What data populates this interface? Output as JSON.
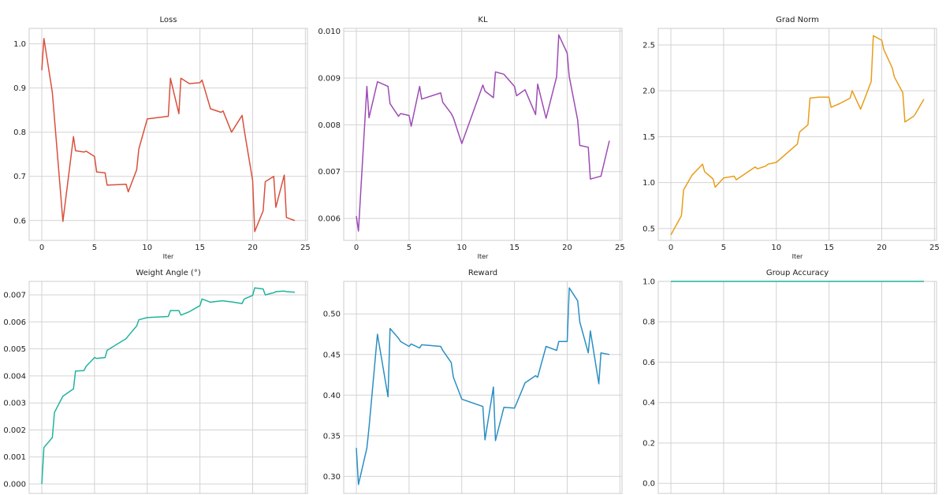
{
  "chart_data": [
    {
      "type": "line",
      "title": "Loss",
      "xlabel": "Iter",
      "ylabel": "",
      "xlim": [
        -1.2,
        25.2
      ],
      "ylim": [
        0.555,
        1.035
      ],
      "xticks": [
        0,
        5,
        10,
        15,
        20,
        25
      ],
      "xtick_labels": [
        "0",
        "5",
        "10",
        "15",
        "20",
        "25"
      ],
      "yticks": [
        0.6,
        0.7,
        0.8,
        0.9,
        1.0
      ],
      "ytick_labels": [
        "0.6",
        "0.7",
        "0.8",
        "0.9",
        "1.0"
      ],
      "color": "#d9503c",
      "series": [
        {
          "name": "Loss",
          "x": [
            0,
            0.2,
            1,
            2,
            3,
            3.2,
            4,
            4.2,
            5,
            5.2,
            6,
            6.2,
            8,
            8.2,
            9,
            9.2,
            10,
            12,
            12.2,
            13,
            13.2,
            14,
            15,
            15.2,
            16,
            17,
            17.2,
            18,
            19,
            19.2,
            20,
            20.2,
            21,
            21.2,
            22,
            22.2,
            23,
            23.2,
            24
          ],
          "y": [
            0.94,
            1.012,
            0.89,
            0.598,
            0.79,
            0.758,
            0.755,
            0.757,
            0.745,
            0.71,
            0.708,
            0.68,
            0.682,
            0.665,
            0.715,
            0.762,
            0.83,
            0.836,
            0.922,
            0.842,
            0.922,
            0.91,
            0.912,
            0.918,
            0.853,
            0.845,
            0.848,
            0.8,
            0.838,
            0.805,
            0.69,
            0.575,
            0.622,
            0.688,
            0.7,
            0.63,
            0.703,
            0.607,
            0.6
          ]
        }
      ]
    },
    {
      "type": "line",
      "title": "KL",
      "xlabel": "Iter",
      "ylabel": "",
      "xlim": [
        -1.2,
        25.2
      ],
      "ylim": [
        0.00553,
        0.01006
      ],
      "xticks": [
        0,
        5,
        10,
        15,
        20,
        25
      ],
      "xtick_labels": [
        "0",
        "5",
        "10",
        "15",
        "20",
        "25"
      ],
      "yticks": [
        0.006,
        0.007,
        0.008,
        0.009,
        0.01
      ],
      "ytick_labels": [
        "0.006",
        "0.007",
        "0.008",
        "0.009",
        "0.010"
      ],
      "color": "#9d4bb5",
      "series": [
        {
          "name": "KL",
          "x": [
            0,
            0.2,
            1,
            1.2,
            2,
            3,
            3.2,
            4,
            4.2,
            5,
            5.2,
            6,
            6.2,
            8,
            8.2,
            9,
            9.2,
            10,
            12,
            12.2,
            13,
            13.2,
            14,
            15,
            15.2,
            16,
            17,
            17.2,
            18,
            19,
            19.2,
            20,
            20.2,
            21,
            21.2,
            22,
            22.2,
            23,
            23.2,
            24
          ],
          "y": [
            0.00605,
            0.00573,
            0.00882,
            0.00815,
            0.00892,
            0.00882,
            0.00845,
            0.00818,
            0.00824,
            0.0082,
            0.00797,
            0.00882,
            0.00855,
            0.00868,
            0.00848,
            0.00824,
            0.00815,
            0.0076,
            0.00885,
            0.00872,
            0.00858,
            0.00913,
            0.00908,
            0.00882,
            0.00862,
            0.00875,
            0.00822,
            0.00887,
            0.00814,
            0.00903,
            0.00992,
            0.00953,
            0.00903,
            0.0081,
            0.00756,
            0.00752,
            0.00684,
            0.00689,
            0.0069,
            0.00766
          ]
        }
      ]
    },
    {
      "type": "line",
      "title": "Grad Norm",
      "xlabel": "Iter",
      "ylabel": "",
      "xlim": [
        -1.2,
        25.2
      ],
      "ylim": [
        0.37,
        2.68
      ],
      "xticks": [
        0,
        5,
        10,
        15,
        20,
        25
      ],
      "xtick_labels": [
        "0",
        "5",
        "10",
        "15",
        "20",
        "25"
      ],
      "yticks": [
        0.5,
        1.0,
        1.5,
        2.0,
        2.5
      ],
      "ytick_labels": [
        "0.5",
        "1.0",
        "1.5",
        "2.0",
        "2.5"
      ],
      "color": "#e89d1a",
      "series": [
        {
          "name": "Grad Norm",
          "x": [
            0,
            1,
            1.2,
            2,
            3,
            3.2,
            4,
            4.2,
            5,
            6,
            6.2,
            8,
            8.2,
            9,
            9.2,
            10,
            12,
            12.2,
            13,
            13.2,
            14,
            15,
            15.2,
            16,
            17,
            17.2,
            18,
            19,
            19.2,
            20,
            20.2,
            21,
            21.2,
            22,
            22.2,
            23,
            23.2,
            24
          ],
          "y": [
            0.43,
            0.64,
            0.92,
            1.08,
            1.2,
            1.12,
            1.04,
            0.95,
            1.05,
            1.07,
            1.03,
            1.17,
            1.15,
            1.18,
            1.2,
            1.22,
            1.42,
            1.55,
            1.63,
            1.92,
            1.93,
            1.93,
            1.82,
            1.86,
            1.92,
            2.0,
            1.8,
            2.1,
            2.6,
            2.55,
            2.45,
            2.25,
            2.15,
            1.98,
            1.66,
            1.72,
            1.75,
            1.91
          ]
        }
      ]
    },
    {
      "type": "line",
      "title": "Weight Angle (°)",
      "xlabel": "",
      "ylabel": "",
      "xlim": [
        -1.2,
        25.2
      ],
      "ylim": [
        -0.00035,
        0.0075
      ],
      "xticks": [
        0,
        5,
        10,
        15,
        20,
        25
      ],
      "xtick_labels": [],
      "yticks": [
        0,
        0.001,
        0.002,
        0.003,
        0.004,
        0.005,
        0.006,
        0.007
      ],
      "ytick_labels": [
        "0.000",
        "0.001",
        "0.002",
        "0.003",
        "0.004",
        "0.005",
        "0.006",
        "0.007"
      ],
      "color": "#1fb39e",
      "series": [
        {
          "name": "Weight Angle",
          "x": [
            0,
            0.2,
            1,
            1.2,
            2,
            3,
            3.2,
            4,
            4.2,
            5,
            5.2,
            6,
            6.2,
            8,
            8.2,
            9,
            9.2,
            10,
            12,
            12.2,
            13,
            13.2,
            14,
            15,
            15.2,
            16,
            17,
            17.2,
            18,
            19,
            19.2,
            20,
            20.2,
            21,
            21.2,
            22,
            22.2,
            23,
            23.2,
            24
          ],
          "y": [
            0.0,
            0.00135,
            0.00172,
            0.00265,
            0.00325,
            0.00352,
            0.00418,
            0.0042,
            0.00435,
            0.00468,
            0.00465,
            0.00468,
            0.00495,
            0.00538,
            0.00548,
            0.00585,
            0.00608,
            0.00616,
            0.0062,
            0.00642,
            0.00642,
            0.00625,
            0.00638,
            0.0066,
            0.00685,
            0.00673,
            0.00678,
            0.00678,
            0.00674,
            0.00668,
            0.00685,
            0.00698,
            0.00726,
            0.00722,
            0.007,
            0.00708,
            0.00712,
            0.00714,
            0.00712,
            0.0071
          ]
        }
      ]
    },
    {
      "type": "line",
      "title": "Reward",
      "xlabel": "",
      "ylabel": "",
      "xlim": [
        -1.2,
        25.2
      ],
      "ylim": [
        0.279,
        0.54
      ],
      "xticks": [
        0,
        5,
        10,
        15,
        20,
        25
      ],
      "xtick_labels": [],
      "yticks": [
        0.3,
        0.35,
        0.4,
        0.45,
        0.5
      ],
      "ytick_labels": [
        "0.30",
        "0.35",
        "0.40",
        "0.45",
        "0.50"
      ],
      "color": "#2b8fc4",
      "series": [
        {
          "name": "Reward",
          "x": [
            0,
            0.2,
            1,
            1.2,
            2,
            3,
            3.2,
            4,
            4.2,
            5,
            5.2,
            6,
            6.2,
            8,
            8.2,
            9,
            9.2,
            10,
            12,
            12.2,
            13,
            13.2,
            14,
            15,
            15.2,
            16,
            17,
            17.2,
            18,
            19,
            19.2,
            20,
            20.2,
            21,
            21.2,
            22,
            22.2,
            23,
            23.2,
            24
          ],
          "y": [
            0.335,
            0.29,
            0.335,
            0.36,
            0.475,
            0.398,
            0.482,
            0.47,
            0.466,
            0.46,
            0.463,
            0.458,
            0.462,
            0.46,
            0.455,
            0.44,
            0.422,
            0.395,
            0.386,
            0.345,
            0.41,
            0.344,
            0.385,
            0.384,
            0.39,
            0.415,
            0.424,
            0.422,
            0.46,
            0.455,
            0.466,
            0.466,
            0.532,
            0.516,
            0.49,
            0.452,
            0.479,
            0.414,
            0.452,
            0.45
          ]
        }
      ]
    },
    {
      "type": "line",
      "title": "Group Accuracy",
      "xlabel": "",
      "ylabel": "",
      "xlim": [
        -1.2,
        25.2
      ],
      "ylim": [
        -0.05,
        1.0
      ],
      "xticks": [
        0,
        5,
        10,
        15,
        20,
        25
      ],
      "xtick_labels": [],
      "yticks": [
        0.0,
        0.2,
        0.4,
        0.6,
        0.8,
        1.0
      ],
      "ytick_labels": [
        "0.0",
        "0.2",
        "0.4",
        "0.6",
        "0.8",
        "1.0"
      ],
      "color": "#1fb39e",
      "series": [
        {
          "name": "Group Accuracy",
          "x": [
            0,
            24
          ],
          "y": [
            1.0,
            1.0
          ]
        }
      ]
    }
  ]
}
